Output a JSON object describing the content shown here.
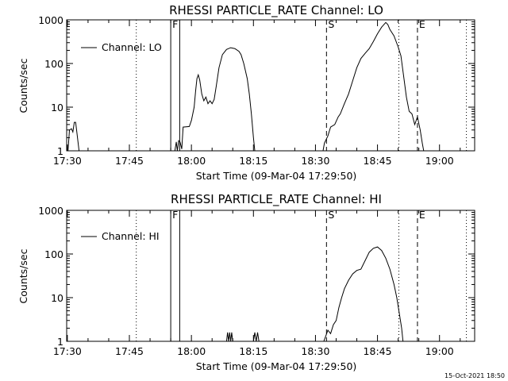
{
  "footer_timestamp": "15-Oct-2021 18:50",
  "chart_data": [
    {
      "type": "line",
      "title": "RHESSI PARTICLE_RATE Channel: LO",
      "xlabel": "Start Time (09-Mar-04 17:29:50)",
      "ylabel": "Counts/sec",
      "yscale": "log",
      "ylim": [
        1,
        1000
      ],
      "xlim": [
        "17:29:50",
        "19:08:30"
      ],
      "xticks": [
        "17:30",
        "17:45",
        "18:00",
        "18:15",
        "18:30",
        "18:45",
        "19:00"
      ],
      "yticks": [
        "1",
        "10",
        "100",
        "1000"
      ],
      "legend": {
        "position": "top-left",
        "label": "Channel: LO"
      },
      "markers": [
        {
          "label": "F",
          "time": "17:55:00",
          "style": "solid"
        },
        {
          "label": "",
          "time": "17:57:10",
          "style": "solid"
        },
        {
          "label": "S",
          "time": "18:32:40",
          "style": "dashed"
        },
        {
          "label": "E",
          "time": "18:54:40",
          "style": "dashed"
        },
        {
          "label": "",
          "time": "17:46:40",
          "style": "dotted"
        },
        {
          "label": "",
          "time": "18:50:10",
          "style": "dotted"
        },
        {
          "label": "",
          "time": "19:06:30",
          "style": "dotted"
        }
      ],
      "series": [
        {
          "name": "Channel: LO",
          "segments": [
            [
              [
                "17:30:10",
                1
              ],
              [
                "17:30:30",
                3
              ],
              [
                "17:31:00",
                3.2
              ],
              [
                "17:31:20",
                2.7
              ],
              [
                "17:31:40",
                4.5
              ],
              [
                "17:32:00",
                4.5
              ],
              [
                "17:32:20",
                2.5
              ],
              [
                "17:32:50",
                1
              ]
            ],
            [
              [
                "17:56:00",
                1
              ],
              [
                "17:56:20",
                1.6
              ],
              [
                "17:56:35",
                1
              ],
              [
                "17:56:55",
                1.7
              ],
              [
                "17:57:15",
                1.6
              ],
              [
                "17:57:40",
                1.1
              ],
              [
                "17:58:00",
                3.5
              ],
              [
                "17:59:30",
                3.6
              ],
              [
                "18:00:00",
                5
              ],
              [
                "18:00:40",
                10
              ],
              [
                "18:01:00",
                23
              ],
              [
                "18:01:20",
                45
              ],
              [
                "18:01:40",
                55
              ],
              [
                "18:02:00",
                42
              ],
              [
                "18:02:30",
                20
              ],
              [
                "18:03:00",
                14
              ],
              [
                "18:03:30",
                17
              ],
              [
                "18:04:00",
                12
              ],
              [
                "18:04:30",
                14
              ],
              [
                "18:05:00",
                12
              ],
              [
                "18:05:30",
                15
              ],
              [
                "18:06:00",
                30
              ],
              [
                "18:06:40",
                80
              ],
              [
                "18:07:30",
                160
              ],
              [
                "18:08:30",
                210
              ],
              [
                "18:09:30",
                230
              ],
              [
                "18:10:30",
                220
              ],
              [
                "18:11:30",
                190
              ],
              [
                "18:12:00",
                160
              ],
              [
                "18:12:40",
                100
              ],
              [
                "18:13:30",
                45
              ],
              [
                "18:14:00",
                20
              ],
              [
                "18:14:30",
                7
              ],
              [
                "18:15:00",
                2
              ],
              [
                "18:15:20",
                1
              ]
            ],
            [
              [
                "18:31:50",
                1
              ],
              [
                "18:32:10",
                1.5
              ],
              [
                "18:33:00",
                2.2
              ],
              [
                "18:33:40",
                3.5
              ],
              [
                "18:34:40",
                4
              ],
              [
                "18:35:30",
                6
              ],
              [
                "18:36:00",
                7
              ],
              [
                "18:37:00",
                12
              ],
              [
                "18:38:00",
                20
              ],
              [
                "18:39:00",
                40
              ],
              [
                "18:40:00",
                80
              ],
              [
                "18:41:00",
                130
              ],
              [
                "18:42:00",
                170
              ],
              [
                "18:43:00",
                220
              ],
              [
                "18:44:00",
                320
              ],
              [
                "18:45:00",
                480
              ],
              [
                "18:46:00",
                680
              ],
              [
                "18:47:00",
                870
              ],
              [
                "18:47:30",
                780
              ],
              [
                "18:48:00",
                600
              ],
              [
                "18:49:00",
                430
              ],
              [
                "18:50:00",
                240
              ],
              [
                "18:50:40",
                150
              ],
              [
                "18:51:20",
                50
              ],
              [
                "18:52:00",
                17
              ],
              [
                "18:52:40",
                8
              ],
              [
                "18:53:20",
                7
              ],
              [
                "18:54:00",
                4
              ],
              [
                "18:54:40",
                6
              ],
              [
                "18:55:20",
                3
              ],
              [
                "18:55:50",
                1.5
              ],
              [
                "18:56:10",
                1
              ]
            ]
          ]
        }
      ]
    },
    {
      "type": "line",
      "title": "RHESSI PARTICLE_RATE Channel: HI",
      "xlabel": "Start Time (09-Mar-04 17:29:50)",
      "ylabel": "Counts/sec",
      "yscale": "log",
      "ylim": [
        1,
        1000
      ],
      "xlim": [
        "17:29:50",
        "19:08:30"
      ],
      "xticks": [
        "17:30",
        "17:45",
        "18:00",
        "18:15",
        "18:30",
        "18:45",
        "19:00"
      ],
      "yticks": [
        "1",
        "10",
        "100",
        "1000"
      ],
      "legend": {
        "position": "top-left",
        "label": "Channel: HI"
      },
      "markers": [
        {
          "label": "F",
          "time": "17:55:00",
          "style": "solid"
        },
        {
          "label": "",
          "time": "17:57:10",
          "style": "solid"
        },
        {
          "label": "S",
          "time": "18:32:40",
          "style": "dashed"
        },
        {
          "label": "E",
          "time": "18:54:40",
          "style": "dashed"
        },
        {
          "label": "",
          "time": "17:46:40",
          "style": "dotted"
        },
        {
          "label": "",
          "time": "18:50:10",
          "style": "dotted"
        },
        {
          "label": "",
          "time": "19:06:30",
          "style": "dotted"
        }
      ],
      "series": [
        {
          "name": "Channel: HI",
          "segments": [
            [
              [
                "18:08:30",
                1
              ],
              [
                "18:08:45",
                1.6
              ],
              [
                "18:09:00",
                1
              ],
              [
                "18:09:15",
                1.6
              ],
              [
                "18:09:30",
                1
              ],
              [
                "18:09:45",
                1.6
              ],
              [
                "18:10:00",
                1
              ]
            ],
            [
              [
                "18:15:00",
                1
              ],
              [
                "18:15:20",
                1.6
              ],
              [
                "18:15:40",
                1
              ],
              [
                "18:16:00",
                1.6
              ],
              [
                "18:16:20",
                1
              ]
            ],
            [
              [
                "18:32:00",
                1
              ],
              [
                "18:32:20",
                1.2
              ],
              [
                "18:33:00",
                1.8
              ],
              [
                "18:33:40",
                1.5
              ],
              [
                "18:34:20",
                2.4
              ],
              [
                "18:35:00",
                3
              ],
              [
                "18:35:40",
                6
              ],
              [
                "18:36:20",
                10
              ],
              [
                "18:37:00",
                16
              ],
              [
                "18:38:00",
                25
              ],
              [
                "18:39:00",
                35
              ],
              [
                "18:40:00",
                42
              ],
              [
                "18:41:00",
                45
              ],
              [
                "18:42:00",
                70
              ],
              [
                "18:43:00",
                110
              ],
              [
                "18:44:00",
                135
              ],
              [
                "18:45:00",
                145
              ],
              [
                "18:46:00",
                120
              ],
              [
                "18:47:00",
                80
              ],
              [
                "18:48:00",
                45
              ],
              [
                "18:49:00",
                20
              ],
              [
                "18:49:40",
                10
              ],
              [
                "18:50:20",
                4
              ],
              [
                "18:50:50",
                2
              ],
              [
                "18:51:10",
                1
              ]
            ]
          ]
        }
      ]
    }
  ]
}
